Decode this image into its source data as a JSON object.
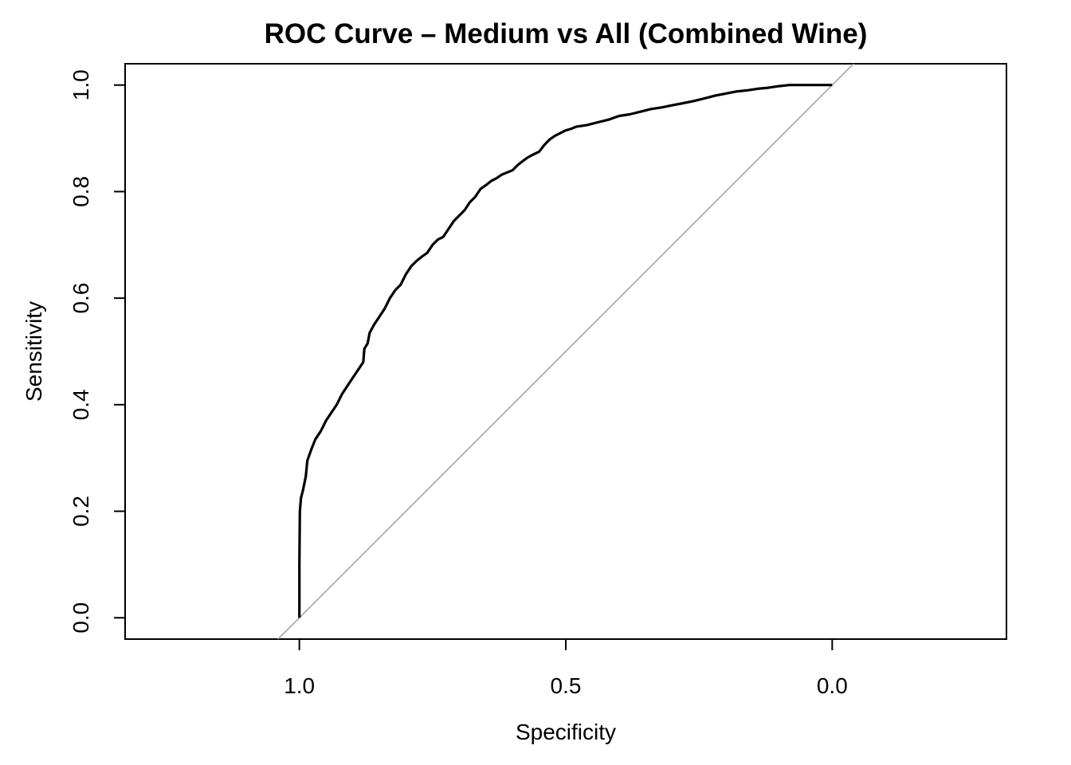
{
  "chart_data": {
    "type": "line",
    "title": "ROC Curve – Medium vs All (Combined Wine)",
    "xlabel": "Specificity",
    "ylabel": "Sensitivity",
    "x_reversed": true,
    "xlim": [
      1.327,
      -0.327
    ],
    "ylim": [
      -0.04,
      1.04
    ],
    "grid": false,
    "legend": "none",
    "x_ticks": [
      {
        "value": 1.0,
        "label": "1.0"
      },
      {
        "value": 0.5,
        "label": "0.5"
      },
      {
        "value": 0.0,
        "label": "0.0"
      }
    ],
    "y_ticks": [
      {
        "value": 0.0,
        "label": "0.0"
      },
      {
        "value": 0.2,
        "label": "0.2"
      },
      {
        "value": 0.4,
        "label": "0.4"
      },
      {
        "value": 0.6,
        "label": "0.6"
      },
      {
        "value": 0.8,
        "label": "0.8"
      },
      {
        "value": 1.0,
        "label": "1.0"
      }
    ],
    "reference_line": {
      "type": "diagonal",
      "intercept": 1,
      "slope": -1,
      "color": "#a0a0a0"
    },
    "series": [
      {
        "color": "#000000",
        "points": [
          [
            1.0,
            0.0
          ],
          [
            1.0,
            0.1
          ],
          [
            0.999,
            0.2
          ],
          [
            0.997,
            0.225
          ],
          [
            0.993,
            0.24
          ],
          [
            0.988,
            0.265
          ],
          [
            0.985,
            0.295
          ],
          [
            0.978,
            0.315
          ],
          [
            0.97,
            0.335
          ],
          [
            0.96,
            0.35
          ],
          [
            0.95,
            0.37
          ],
          [
            0.94,
            0.385
          ],
          [
            0.93,
            0.4
          ],
          [
            0.92,
            0.42
          ],
          [
            0.91,
            0.435
          ],
          [
            0.9,
            0.45
          ],
          [
            0.89,
            0.465
          ],
          [
            0.88,
            0.48
          ],
          [
            0.878,
            0.505
          ],
          [
            0.872,
            0.515
          ],
          [
            0.868,
            0.535
          ],
          [
            0.86,
            0.55
          ],
          [
            0.85,
            0.565
          ],
          [
            0.84,
            0.58
          ],
          [
            0.83,
            0.6
          ],
          [
            0.82,
            0.615
          ],
          [
            0.81,
            0.625
          ],
          [
            0.8,
            0.645
          ],
          [
            0.79,
            0.66
          ],
          [
            0.78,
            0.67
          ],
          [
            0.77,
            0.678
          ],
          [
            0.76,
            0.685
          ],
          [
            0.75,
            0.7
          ],
          [
            0.74,
            0.71
          ],
          [
            0.73,
            0.715
          ],
          [
            0.72,
            0.73
          ],
          [
            0.71,
            0.745
          ],
          [
            0.7,
            0.755
          ],
          [
            0.69,
            0.765
          ],
          [
            0.68,
            0.78
          ],
          [
            0.67,
            0.79
          ],
          [
            0.66,
            0.805
          ],
          [
            0.65,
            0.812
          ],
          [
            0.64,
            0.82
          ],
          [
            0.63,
            0.825
          ],
          [
            0.62,
            0.832
          ],
          [
            0.6,
            0.84
          ],
          [
            0.59,
            0.85
          ],
          [
            0.58,
            0.858
          ],
          [
            0.57,
            0.865
          ],
          [
            0.56,
            0.87
          ],
          [
            0.55,
            0.875
          ],
          [
            0.54,
            0.888
          ],
          [
            0.53,
            0.898
          ],
          [
            0.52,
            0.905
          ],
          [
            0.51,
            0.91
          ],
          [
            0.5,
            0.915
          ],
          [
            0.49,
            0.918
          ],
          [
            0.48,
            0.922
          ],
          [
            0.46,
            0.925
          ],
          [
            0.44,
            0.93
          ],
          [
            0.42,
            0.935
          ],
          [
            0.4,
            0.942
          ],
          [
            0.38,
            0.945
          ],
          [
            0.36,
            0.95
          ],
          [
            0.34,
            0.955
          ],
          [
            0.32,
            0.958
          ],
          [
            0.3,
            0.962
          ],
          [
            0.28,
            0.966
          ],
          [
            0.26,
            0.97
          ],
          [
            0.24,
            0.975
          ],
          [
            0.22,
            0.98
          ],
          [
            0.2,
            0.984
          ],
          [
            0.18,
            0.988
          ],
          [
            0.16,
            0.99
          ],
          [
            0.14,
            0.993
          ],
          [
            0.12,
            0.995
          ],
          [
            0.1,
            0.998
          ],
          [
            0.08,
            1.0
          ],
          [
            0.04,
            1.0
          ],
          [
            0.0,
            1.0
          ]
        ]
      }
    ]
  }
}
